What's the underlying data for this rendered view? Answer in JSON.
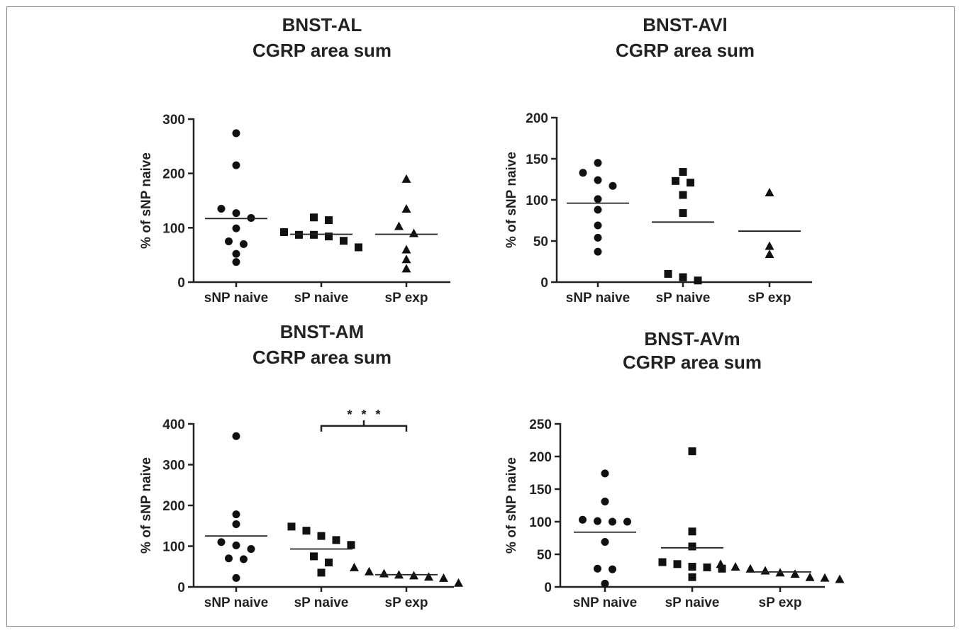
{
  "chart_data": [
    {
      "type": "scatter",
      "title": [
        "BNST-AL",
        "CGRP area sum"
      ],
      "ylabel": "% of sNP naive",
      "xlabel": "",
      "categories": [
        "sNP naive",
        "sP naive",
        "sP exp"
      ],
      "markers": [
        "circle",
        "square",
        "triangle"
      ],
      "ylim": [
        0,
        300
      ],
      "yticks": [
        0,
        100,
        200,
        300
      ],
      "series": [
        {
          "values": [
            274,
            215,
            135,
            127,
            118,
            99,
            75,
            70,
            52,
            37
          ]
        },
        {
          "values": [
            119,
            114,
            92,
            87,
            87,
            84,
            76,
            64
          ]
        },
        {
          "values": [
            190,
            135,
            103,
            90,
            60,
            42,
            25
          ]
        }
      ],
      "means": [
        117,
        88,
        88
      ],
      "annotations": []
    },
    {
      "type": "scatter",
      "title": [
        "BNST-AVl",
        "CGRP area sum"
      ],
      "ylabel": "% of sNP naive",
      "xlabel": "",
      "categories": [
        "sNP naive",
        "sP naive",
        "sP exp"
      ],
      "markers": [
        "circle",
        "square",
        "triangle"
      ],
      "ylim": [
        0,
        200
      ],
      "yticks": [
        0,
        50,
        100,
        150,
        200
      ],
      "series": [
        {
          "values": [
            145,
            133,
            124,
            117,
            101,
            88,
            69,
            54,
            37
          ]
        },
        {
          "values": [
            134,
            123,
            121,
            106,
            84,
            10,
            6,
            2
          ]
        },
        {
          "values": [
            109,
            44,
            34
          ]
        }
      ],
      "means": [
        96,
        73,
        62
      ],
      "annotations": []
    },
    {
      "type": "scatter",
      "title": [
        "BNST-AM",
        "CGRP area sum"
      ],
      "ylabel": "% of sNP naive",
      "xlabel": "",
      "categories": [
        "sNP naive",
        "sP naive",
        "sP exp"
      ],
      "markers": [
        "circle",
        "square",
        "triangle"
      ],
      "ylim": [
        0,
        400
      ],
      "yticks": [
        0,
        100,
        200,
        300,
        400
      ],
      "series": [
        {
          "values": [
            370,
            178,
            154,
            110,
            102,
            93,
            70,
            68,
            22
          ]
        },
        {
          "values": [
            148,
            138,
            125,
            115,
            103,
            75,
            60,
            35
          ]
        },
        {
          "values": [
            48,
            38,
            33,
            30,
            28,
            25,
            22,
            10
          ]
        }
      ],
      "means": [
        125,
        93,
        30
      ],
      "annotations": [
        {
          "text": "* * *",
          "from": "sP naive",
          "to": "sP exp",
          "y": 395
        }
      ]
    },
    {
      "type": "scatter",
      "title": [
        "BNST-AVm",
        "CGRP area sum"
      ],
      "ylabel": "% of sNP naive",
      "xlabel": "",
      "categories": [
        "sNP naive",
        "sP naive",
        "sP exp"
      ],
      "markers": [
        "circle",
        "square",
        "triangle"
      ],
      "ylim": [
        0,
        250
      ],
      "yticks": [
        0,
        50,
        100,
        150,
        200,
        250
      ],
      "series": [
        {
          "values": [
            174,
            131,
            103,
            101,
            100,
            100,
            69,
            28,
            27,
            5
          ]
        },
        {
          "values": [
            208,
            85,
            62,
            38,
            35,
            31,
            30,
            28,
            15
          ]
        },
        {
          "values": [
            35,
            31,
            28,
            25,
            22,
            20,
            15,
            14,
            12
          ]
        }
      ],
      "means": [
        84,
        60,
        23
      ],
      "annotations": []
    }
  ]
}
